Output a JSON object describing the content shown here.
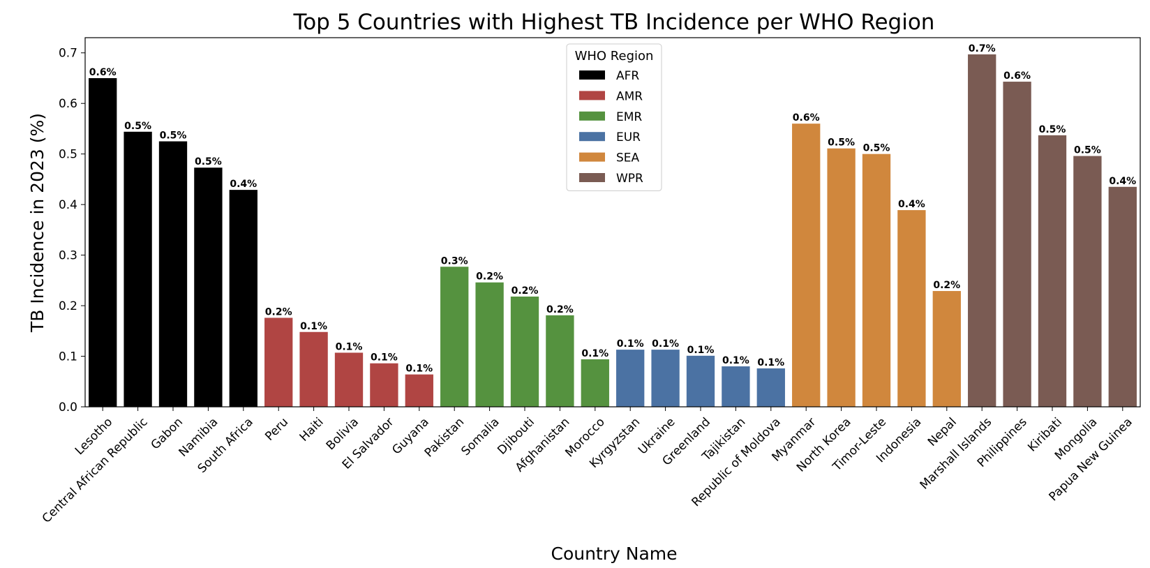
{
  "chart_data": {
    "type": "bar",
    "title": "Top 5 Countries with Highest TB Incidence per WHO Region",
    "xlabel": "Country Name",
    "ylabel": "TB Incidence in 2023 (%)",
    "ylim": [
      0,
      0.73
    ],
    "yticks": [
      0.0,
      0.1,
      0.2,
      0.3,
      0.4,
      0.5,
      0.6,
      0.7
    ],
    "ytick_labels": [
      "0.0",
      "0.1",
      "0.2",
      "0.3",
      "0.4",
      "0.5",
      "0.6",
      "0.7"
    ],
    "grid": false,
    "legend": {
      "title": "WHO Region",
      "position": "top-center",
      "entries": [
        {
          "name": "AFR",
          "color": "#000000"
        },
        {
          "name": "AMR",
          "color": "#B04543"
        },
        {
          "name": "EMR",
          "color": "#55923F"
        },
        {
          "name": "EUR",
          "color": "#4B72A3"
        },
        {
          "name": "SEA",
          "color": "#D0873D"
        },
        {
          "name": "WPR",
          "color": "#7A5B53"
        }
      ]
    },
    "categories": [
      "Lesotho",
      "Central African Republic",
      "Gabon",
      "Namibia",
      "South Africa",
      "Peru",
      "Haiti",
      "Bolivia",
      "El Salvador",
      "Guyana",
      "Pakistan",
      "Somalia",
      "Djibouti",
      "Afghanistan",
      "Morocco",
      "Kyrgyzstan",
      "Ukraine",
      "Greenland",
      "Tajikistan",
      "Republic of Moldova",
      "Myanmar",
      "North Korea",
      "Timor-Leste",
      "Indonesia",
      "Nepal",
      "Marshall Islands",
      "Philippines",
      "Kiribati",
      "Mongolia",
      "Papua New Guinea"
    ],
    "regions": [
      "AFR",
      "AFR",
      "AFR",
      "AFR",
      "AFR",
      "AMR",
      "AMR",
      "AMR",
      "AMR",
      "AMR",
      "EMR",
      "EMR",
      "EMR",
      "EMR",
      "EMR",
      "EUR",
      "EUR",
      "EUR",
      "EUR",
      "EUR",
      "SEA",
      "SEA",
      "SEA",
      "SEA",
      "SEA",
      "WPR",
      "WPR",
      "WPR",
      "WPR",
      "WPR"
    ],
    "values": [
      0.65,
      0.544,
      0.525,
      0.473,
      0.429,
      0.176,
      0.148,
      0.107,
      0.086,
      0.064,
      0.277,
      0.246,
      0.218,
      0.181,
      0.094,
      0.113,
      0.113,
      0.101,
      0.08,
      0.076,
      0.56,
      0.511,
      0.5,
      0.389,
      0.229,
      0.697,
      0.643,
      0.537,
      0.496,
      0.435
    ],
    "data_labels": [
      "0.6%",
      "0.5%",
      "0.5%",
      "0.5%",
      "0.4%",
      "0.2%",
      "0.1%",
      "0.1%",
      "0.1%",
      "0.1%",
      "0.3%",
      "0.2%",
      "0.2%",
      "0.2%",
      "0.1%",
      "0.1%",
      "0.1%",
      "0.1%",
      "0.1%",
      "0.1%",
      "0.6%",
      "0.5%",
      "0.5%",
      "0.4%",
      "0.2%",
      "0.7%",
      "0.6%",
      "0.5%",
      "0.5%",
      "0.4%"
    ]
  }
}
